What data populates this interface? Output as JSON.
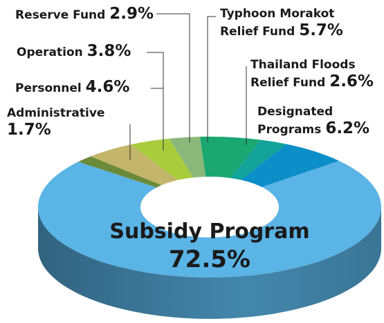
{
  "chart_data": {
    "type": "pie3d",
    "categories": [
      "Administrative",
      "Personnel",
      "Operation",
      "Reserve Fund",
      "Typhoon Morakot Relief Fund",
      "Thailand Floods Relief Fund",
      "Designated Programs",
      "Subsidy Program"
    ],
    "values": [
      1.7,
      4.6,
      3.8,
      2.9,
      5.7,
      2.6,
      6.2,
      72.5
    ],
    "value_labels": [
      "1.7%",
      "4.6%",
      "3.8%",
      "2.9%",
      "5.7%",
      "2.6%",
      "6.2%",
      "72.5%"
    ],
    "colors": [
      "#6b8a3a",
      "#c3b56a",
      "#a8cc3c",
      "#8ab87a",
      "#1aa772",
      "#12a39a",
      "#0c8ec9",
      "#5ab4e6"
    ]
  }
}
